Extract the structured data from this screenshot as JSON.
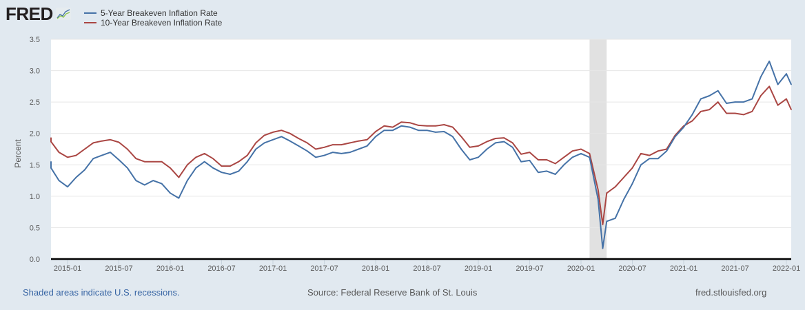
{
  "header": {
    "logo_text": "FRED",
    "logo_icon": "line-chart-icon"
  },
  "footer": {
    "recession_note": "Shaded areas indicate U.S. recessions.",
    "source": "Source: Federal Reserve Bank of St. Louis",
    "site": "fred.stlouisfed.org"
  },
  "colors": {
    "background": "#e1e9f0",
    "plot_background": "#ffffff",
    "series_5yr": "#4572a7",
    "series_10yr": "#aa4643",
    "recession": "#e1e1e1",
    "grid": "#e6e6e6",
    "link": "#3a67a5"
  },
  "chart_data": {
    "type": "line",
    "title": "",
    "xlabel": "",
    "ylabel": "Percent",
    "ylim": [
      0,
      3.5
    ],
    "xlim": [
      "2014-10",
      "2022-02"
    ],
    "grid": true,
    "legend_position": "top-left",
    "y_ticks": [
      "0.0",
      "0.5",
      "1.0",
      "1.5",
      "2.0",
      "2.5",
      "3.0",
      "3.5"
    ],
    "x_ticks": [
      "2015-01",
      "2015-07",
      "2016-01",
      "2016-07",
      "2017-01",
      "2017-07",
      "2018-01",
      "2018-07",
      "2019-01",
      "2019-07",
      "2020-01",
      "2020-07",
      "2021-01",
      "2021-07",
      "2022-01"
    ],
    "recessions": [
      {
        "start": "2020-02",
        "end": "2020-04"
      }
    ],
    "x": [
      "2014-10",
      "2014-11",
      "2014-12",
      "2015-01",
      "2015-02",
      "2015-03",
      "2015-04",
      "2015-05",
      "2015-06",
      "2015-07",
      "2015-08",
      "2015-09",
      "2015-10",
      "2015-11",
      "2015-12",
      "2016-01",
      "2016-02",
      "2016-03",
      "2016-04",
      "2016-05",
      "2016-06",
      "2016-07",
      "2016-08",
      "2016-09",
      "2016-10",
      "2016-11",
      "2016-12",
      "2017-01",
      "2017-02",
      "2017-03",
      "2017-04",
      "2017-05",
      "2017-06",
      "2017-07",
      "2017-08",
      "2017-09",
      "2017-10",
      "2017-11",
      "2017-12",
      "2018-01",
      "2018-02",
      "2018-03",
      "2018-04",
      "2018-05",
      "2018-06",
      "2018-07",
      "2018-08",
      "2018-09",
      "2018-10",
      "2018-11",
      "2018-12",
      "2019-01",
      "2019-02",
      "2019-03",
      "2019-04",
      "2019-05",
      "2019-06",
      "2019-07",
      "2019-08",
      "2019-09",
      "2019-10",
      "2019-11",
      "2019-12",
      "2020-01",
      "2020-02",
      "2020-03a",
      "2020-03b",
      "2020-04",
      "2020-05",
      "2020-06",
      "2020-07",
      "2020-08",
      "2020-09",
      "2020-10",
      "2020-11",
      "2020-12",
      "2021-01",
      "2021-02",
      "2021-03",
      "2021-04",
      "2021-05",
      "2021-06",
      "2021-07",
      "2021-08",
      "2021-09",
      "2021-10",
      "2021-11",
      "2021-12",
      "2022-01",
      "2022-02"
    ],
    "series": [
      {
        "name": "5-Year Breakeven Inflation Rate",
        "color": "#4572a7",
        "values": [
          1.55,
          1.45,
          1.25,
          1.15,
          1.3,
          1.42,
          1.6,
          1.65,
          1.7,
          1.58,
          1.45,
          1.25,
          1.18,
          1.25,
          1.2,
          1.05,
          0.97,
          1.25,
          1.45,
          1.55,
          1.45,
          1.38,
          1.35,
          1.4,
          1.55,
          1.75,
          1.85,
          1.9,
          1.95,
          1.88,
          1.8,
          1.72,
          1.62,
          1.65,
          1.7,
          1.68,
          1.7,
          1.75,
          1.8,
          1.95,
          2.05,
          2.05,
          2.12,
          2.1,
          2.05,
          2.05,
          2.02,
          2.03,
          1.95,
          1.75,
          1.58,
          1.62,
          1.75,
          1.85,
          1.87,
          1.78,
          1.55,
          1.57,
          1.38,
          1.4,
          1.35,
          1.5,
          1.62,
          1.68,
          1.62,
          0.95,
          0.17,
          0.6,
          0.65,
          0.95,
          1.2,
          1.5,
          1.6,
          1.6,
          1.72,
          1.95,
          2.1,
          2.3,
          2.55,
          2.6,
          2.68,
          2.48,
          2.5,
          2.5,
          2.55,
          2.9,
          3.15,
          2.78,
          2.95,
          2.78
        ]
      },
      {
        "name": "10-Year Breakeven Inflation Rate",
        "color": "#aa4643",
        "values": [
          1.93,
          1.87,
          1.7,
          1.62,
          1.65,
          1.75,
          1.85,
          1.88,
          1.9,
          1.86,
          1.75,
          1.6,
          1.55,
          1.55,
          1.55,
          1.45,
          1.3,
          1.5,
          1.62,
          1.68,
          1.6,
          1.48,
          1.48,
          1.55,
          1.65,
          1.85,
          1.97,
          2.02,
          2.05,
          2.0,
          1.92,
          1.85,
          1.75,
          1.78,
          1.82,
          1.82,
          1.85,
          1.88,
          1.9,
          2.03,
          2.12,
          2.1,
          2.18,
          2.17,
          2.13,
          2.12,
          2.12,
          2.14,
          2.1,
          1.95,
          1.78,
          1.8,
          1.87,
          1.92,
          1.93,
          1.85,
          1.67,
          1.7,
          1.58,
          1.58,
          1.52,
          1.62,
          1.72,
          1.75,
          1.68,
          1.1,
          0.55,
          1.05,
          1.15,
          1.3,
          1.45,
          1.68,
          1.65,
          1.72,
          1.75,
          1.97,
          2.12,
          2.2,
          2.35,
          2.38,
          2.5,
          2.32,
          2.32,
          2.3,
          2.35,
          2.6,
          2.75,
          2.45,
          2.55,
          2.38
        ]
      }
    ]
  }
}
